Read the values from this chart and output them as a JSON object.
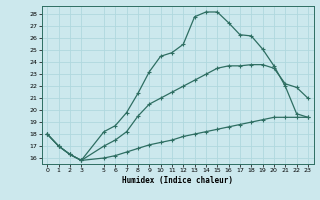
{
  "xlabel": "Humidex (Indice chaleur)",
  "bg_color": "#cce8ed",
  "grid_color": "#b0d8de",
  "line_color": "#2e6e62",
  "xlim": [
    -0.5,
    23.5
  ],
  "ylim": [
    15.5,
    28.7
  ],
  "xticks": [
    0,
    1,
    2,
    3,
    5,
    6,
    7,
    8,
    9,
    10,
    11,
    12,
    13,
    14,
    15,
    16,
    17,
    18,
    19,
    20,
    21,
    22,
    23
  ],
  "yticks": [
    16,
    17,
    18,
    19,
    20,
    21,
    22,
    23,
    24,
    25,
    26,
    27,
    28
  ],
  "line1_x": [
    0,
    1,
    2,
    3,
    5,
    6,
    7,
    8,
    9,
    10,
    11,
    12,
    13,
    14,
    15,
    16,
    17,
    18,
    19,
    20,
    21,
    22,
    23
  ],
  "line1_y": [
    18.0,
    17.0,
    16.3,
    15.8,
    18.2,
    18.7,
    19.8,
    21.4,
    23.2,
    24.5,
    24.8,
    25.5,
    27.8,
    28.2,
    28.2,
    27.3,
    26.3,
    26.2,
    25.1,
    23.7,
    22.0,
    19.7,
    19.4
  ],
  "line2_x": [
    0,
    1,
    2,
    3,
    5,
    6,
    7,
    8,
    9,
    10,
    11,
    12,
    13,
    14,
    15,
    16,
    17,
    18,
    19,
    20,
    21,
    22,
    23
  ],
  "line2_y": [
    18.0,
    17.0,
    16.3,
    15.8,
    17.0,
    17.5,
    18.2,
    19.5,
    20.5,
    21.0,
    21.5,
    22.0,
    22.5,
    23.0,
    23.5,
    23.7,
    23.7,
    23.8,
    23.8,
    23.5,
    22.2,
    21.9,
    21.0
  ],
  "line3_x": [
    0,
    1,
    2,
    3,
    5,
    6,
    7,
    8,
    9,
    10,
    11,
    12,
    13,
    14,
    15,
    16,
    17,
    18,
    19,
    20,
    21,
    22,
    23
  ],
  "line3_y": [
    18.0,
    17.0,
    16.3,
    15.8,
    16.0,
    16.2,
    16.5,
    16.8,
    17.1,
    17.3,
    17.5,
    17.8,
    18.0,
    18.2,
    18.4,
    18.6,
    18.8,
    19.0,
    19.2,
    19.4,
    19.4,
    19.4,
    19.4
  ]
}
